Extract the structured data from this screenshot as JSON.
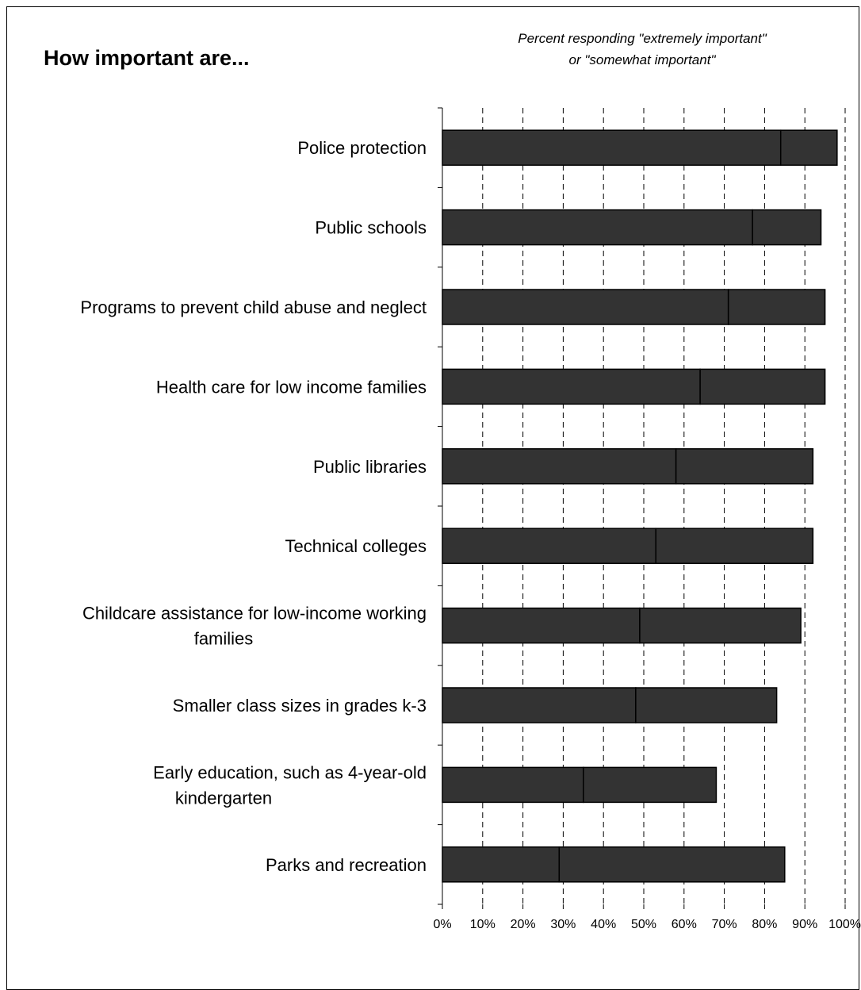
{
  "chart_data": {
    "type": "bar",
    "orientation": "horizontal",
    "stacked": true,
    "title": "How important are...",
    "subtitle_lines": [
      "Percent responding \"extremely important\"",
      "or \"somewhat important\""
    ],
    "categories": [
      [
        "Police protection"
      ],
      [
        "Public schools"
      ],
      [
        "Programs to prevent child abuse and neglect"
      ],
      [
        "Health care for low income families"
      ],
      [
        "Public libraries"
      ],
      [
        "Technical colleges"
      ],
      [
        "Childcare assistance for low-income working",
        "families"
      ],
      [
        "Smaller class sizes in grades k-3"
      ],
      [
        "Early education, such as 4-year-old",
        "kindergarten"
      ],
      [
        "Parks and recreation"
      ]
    ],
    "series": [
      {
        "values": [
          84,
          77,
          71,
          64,
          58,
          53,
          49,
          48,
          35,
          29
        ]
      },
      {
        "values": [
          14,
          17,
          24,
          31,
          34,
          39,
          40,
          35,
          33,
          56
        ]
      }
    ],
    "xlim": [
      0,
      100
    ],
    "x_ticks": [
      "0%",
      "10%",
      "20%",
      "30%",
      "40%",
      "50%",
      "60%",
      "70%",
      "80%",
      "90%",
      "100%"
    ],
    "grid": "vertical dashed",
    "legend": "none",
    "colors": {
      "bar_fill": "#333333",
      "bar_stroke": "#000000",
      "grid": "#000000"
    }
  }
}
